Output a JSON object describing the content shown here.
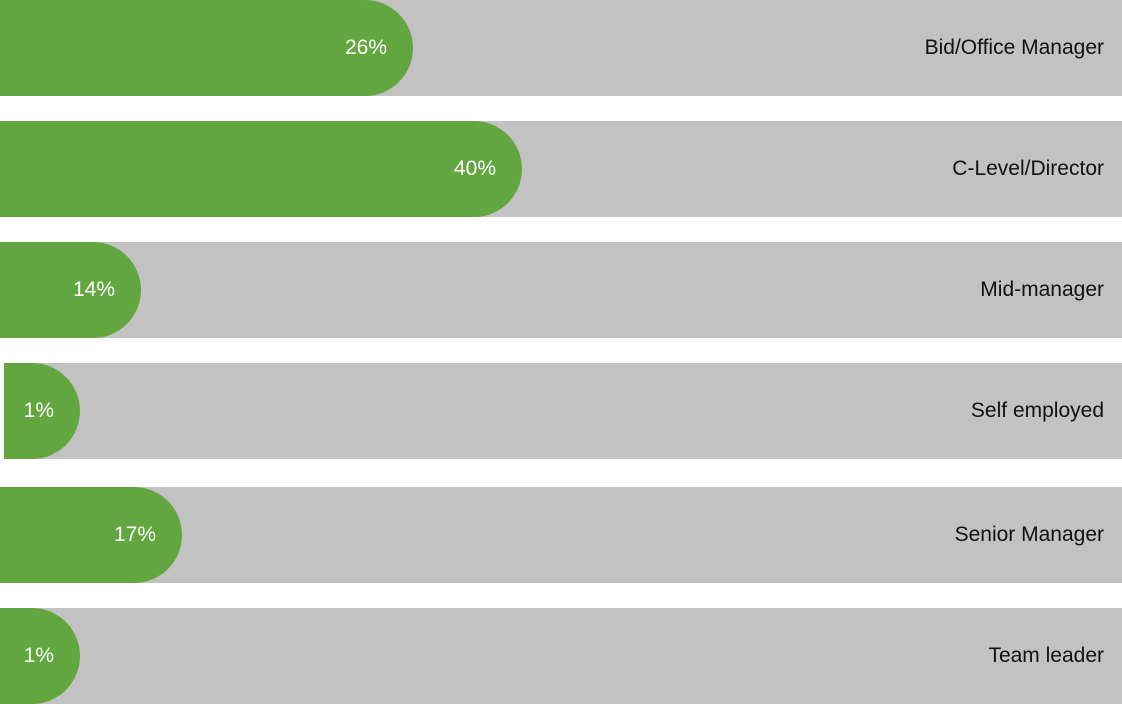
{
  "chart_data": {
    "type": "bar",
    "orientation": "horizontal",
    "categories": [
      "Bid/Office Manager",
      "C-Level/Director",
      "Mid-manager",
      "Self employed",
      "Senior Manager",
      "Team leader"
    ],
    "values": [
      26,
      40,
      14,
      1,
      17,
      1
    ],
    "value_labels": [
      "26%",
      "40%",
      "14%",
      "1%",
      "17%",
      "1%"
    ],
    "unit": "%",
    "title": "",
    "xlabel": "",
    "ylabel": "",
    "legend": "none",
    "grid": false,
    "colors": {
      "bar": "#62a640",
      "track": "#c2c2c2",
      "value_text": "#ffffff",
      "category_text": "#111111"
    }
  }
}
